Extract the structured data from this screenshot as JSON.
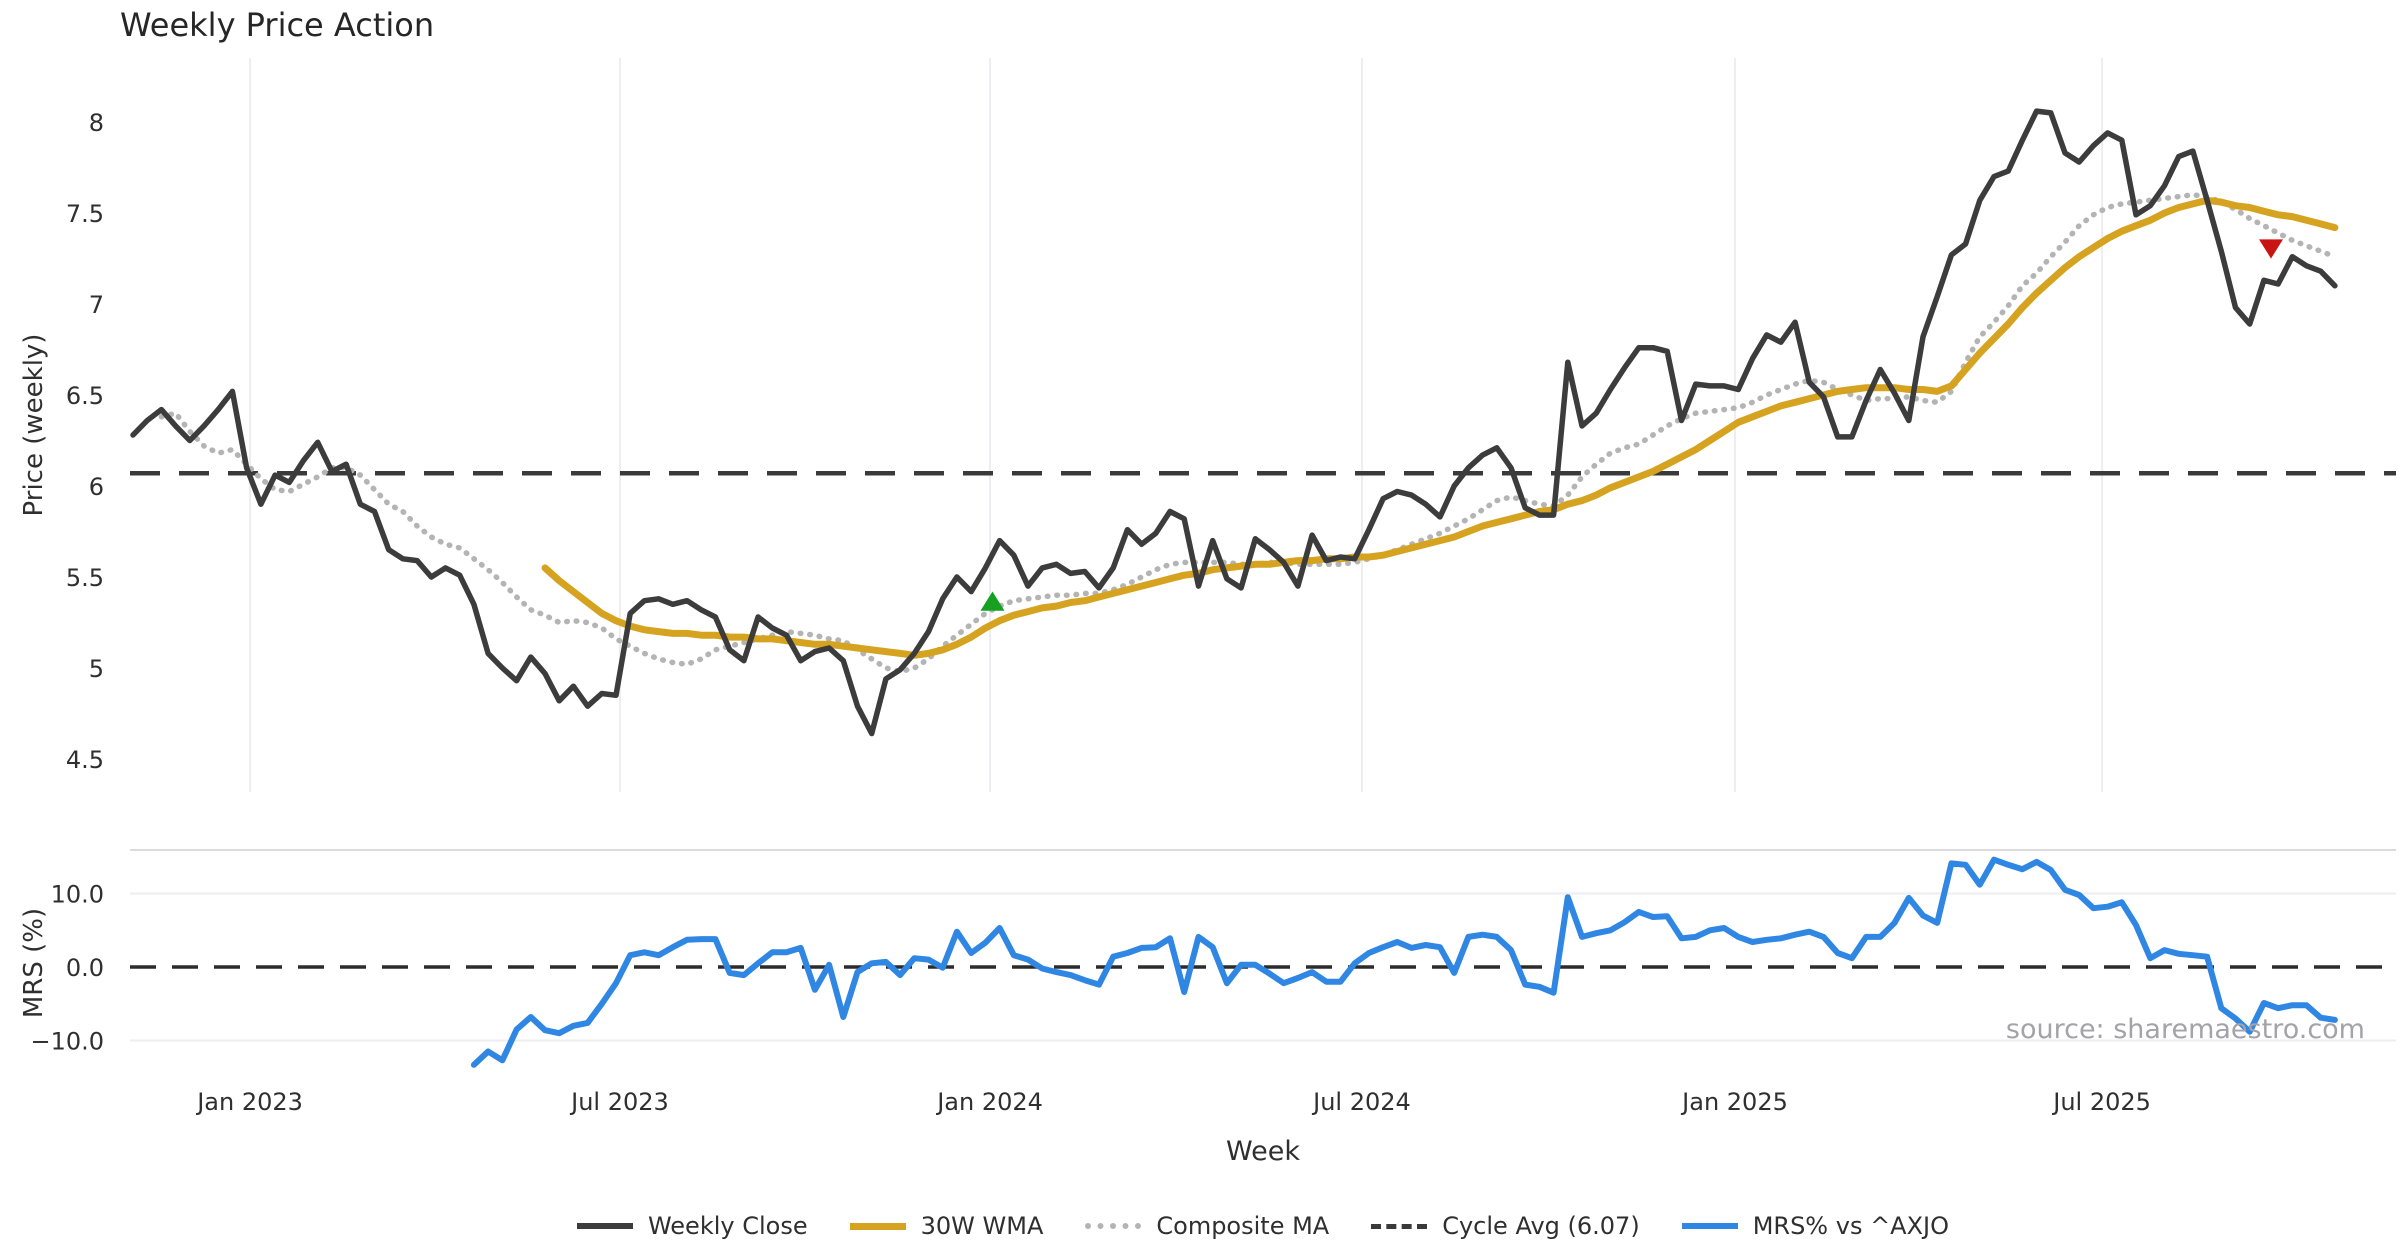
{
  "title": "Weekly Price Action",
  "source_note": "source: sharemaestro.com",
  "colors": {
    "weekly_close": "#3C3C3C",
    "wma": "#D6A320",
    "composite": "#B4B4B4",
    "cycle_avg": "#3A3A3A",
    "mrs": "#2F87E3",
    "buy_marker": "#16A123",
    "sell_marker": "#C91414",
    "grid": "#EDEDF2",
    "panel_border": "#DBDBE2",
    "zero_line": "#2B2B2B"
  },
  "legend": {
    "items": [
      {
        "label": "Weekly Close",
        "style": "solid",
        "weight": 6,
        "color": "#3C3C3C"
      },
      {
        "label": "30W WMA",
        "style": "solid",
        "weight": 7,
        "color": "#D6A320"
      },
      {
        "label": "Composite MA",
        "style": "dotted",
        "weight": 6,
        "color": "#B4B4B4"
      },
      {
        "label": "Cycle Avg (6.07)",
        "style": "dashed",
        "weight": 5,
        "color": "#3A3A3A"
      },
      {
        "label": "MRS% vs ^AXJO",
        "style": "solid",
        "weight": 6,
        "color": "#2F87E3"
      }
    ]
  },
  "chart_data": {
    "type": "line",
    "title": "Weekly Price Action",
    "xlabel": "Week",
    "panels": [
      {
        "id": "price",
        "ylabel": "Price (weekly)",
        "ylim": [
          4.3,
          8.35
        ],
        "yticks": [
          {
            "v": 8,
            "label": "8"
          },
          {
            "v": 7.5,
            "label": "7.5"
          },
          {
            "v": 7,
            "label": "7"
          },
          {
            "v": 6.5,
            "label": "6.5"
          },
          {
            "v": 6,
            "label": "6"
          },
          {
            "v": 5.5,
            "label": "5.5"
          },
          {
            "v": 5,
            "label": "5"
          },
          {
            "v": 4.5,
            "label": "4.5"
          }
        ]
      },
      {
        "id": "mrs",
        "ylabel": "MRS (%)",
        "ylim": [
          -15.9,
          15.9
        ],
        "yticks": [
          {
            "v": 10,
            "label": "10.0"
          },
          {
            "v": 0,
            "label": "0.0"
          },
          {
            "v": -10,
            "label": "−10.0"
          }
        ]
      }
    ],
    "x_axis": {
      "label": "Week",
      "ticks": [
        {
          "label": "Jan 2023",
          "week": 8.24
        },
        {
          "label": "Jul 2023",
          "week": 34.28
        },
        {
          "label": "Jan 2024",
          "week": 60.33
        },
        {
          "label": "Jul 2024",
          "week": 86.51
        },
        {
          "label": "Jan 2025",
          "week": 112.77
        },
        {
          "label": "Jul 2025",
          "week": 138.61
        }
      ]
    },
    "cycle_avg": 6.07,
    "series": [
      {
        "name": "Composite MA",
        "panel": "price",
        "style": "dotted",
        "width": 5.5,
        "color": "#B4B4B4",
        "start_week": 2,
        "values": [
          6.38,
          6.4,
          6.3,
          6.22,
          6.18,
          6.2,
          6.12,
          6.04,
          5.98,
          5.97,
          6.01,
          6.05,
          6.1,
          6.1,
          6.06,
          5.98,
          5.9,
          5.86,
          5.78,
          5.72,
          5.68,
          5.66,
          5.6,
          5.54,
          5.47,
          5.39,
          5.32,
          5.29,
          5.25,
          5.26,
          5.25,
          5.22,
          5.16,
          5.12,
          5.08,
          5.05,
          5.03,
          5.02,
          5.05,
          5.1,
          5.12,
          5.14,
          5.16,
          5.18,
          5.2,
          5.19,
          5.18,
          5.16,
          5.15,
          5.1,
          5.05,
          5.0,
          4.98,
          5.0,
          5.05,
          5.12,
          5.18,
          5.24,
          5.3,
          5.34,
          5.37,
          5.38,
          5.39,
          5.4,
          5.4,
          5.41,
          5.41,
          5.43,
          5.46,
          5.5,
          5.54,
          5.57,
          5.58,
          5.58,
          5.58,
          5.58,
          5.57,
          5.57,
          5.58,
          5.58,
          5.57,
          5.57,
          5.57,
          5.57,
          5.58,
          5.6,
          5.62,
          5.65,
          5.68,
          5.71,
          5.74,
          5.78,
          5.82,
          5.87,
          5.92,
          5.94,
          5.92,
          5.9,
          5.89,
          5.95,
          6.05,
          6.12,
          6.18,
          6.21,
          6.23,
          6.28,
          6.33,
          6.37,
          6.4,
          6.41,
          6.42,
          6.43,
          6.46,
          6.5,
          6.53,
          6.56,
          6.58,
          6.57,
          6.53,
          6.5,
          6.47,
          6.48,
          6.48,
          6.49,
          6.47,
          6.46,
          6.52,
          6.68,
          6.82,
          6.9,
          6.99,
          7.1,
          7.17,
          7.26,
          7.34,
          7.43,
          7.49,
          7.53,
          7.55,
          7.56,
          7.57,
          7.58,
          7.59,
          7.6,
          7.59,
          7.56,
          7.52,
          7.47,
          7.43,
          7.39,
          7.35,
          7.32,
          7.29,
          7.26
        ]
      },
      {
        "name": "30W WMA",
        "panel": "price",
        "style": "solid",
        "width": 7,
        "color": "#D6A320",
        "start_week": 29,
        "values": [
          5.55,
          5.48,
          5.42,
          5.36,
          5.3,
          5.26,
          5.23,
          5.21,
          5.2,
          5.19,
          5.19,
          5.18,
          5.18,
          5.17,
          5.17,
          5.16,
          5.16,
          5.15,
          5.14,
          5.13,
          5.13,
          5.12,
          5.11,
          5.1,
          5.09,
          5.08,
          5.07,
          5.08,
          5.1,
          5.13,
          5.17,
          5.22,
          5.26,
          5.29,
          5.31,
          5.33,
          5.34,
          5.36,
          5.37,
          5.39,
          5.41,
          5.43,
          5.45,
          5.47,
          5.49,
          5.51,
          5.52,
          5.54,
          5.55,
          5.56,
          5.57,
          5.57,
          5.58,
          5.59,
          5.59,
          5.6,
          5.6,
          5.61,
          5.61,
          5.62,
          5.64,
          5.66,
          5.68,
          5.7,
          5.72,
          5.75,
          5.78,
          5.8,
          5.82,
          5.84,
          5.86,
          5.87,
          5.9,
          5.92,
          5.95,
          5.99,
          6.02,
          6.05,
          6.08,
          6.12,
          6.16,
          6.2,
          6.25,
          6.3,
          6.35,
          6.38,
          6.41,
          6.44,
          6.46,
          6.48,
          6.5,
          6.52,
          6.53,
          6.54,
          6.54,
          6.54,
          6.53,
          6.53,
          6.52,
          6.55,
          6.64,
          6.73,
          6.81,
          6.89,
          6.98,
          7.06,
          7.13,
          7.2,
          7.26,
          7.31,
          7.36,
          7.4,
          7.43,
          7.46,
          7.5,
          7.53,
          7.55,
          7.57,
          7.56,
          7.54,
          7.53,
          7.51,
          7.49,
          7.48,
          7.46,
          7.44,
          7.42
        ]
      },
      {
        "name": "Weekly Close",
        "panel": "price",
        "style": "solid",
        "width": 5.5,
        "color": "#3C3C3C",
        "start_week": 0,
        "values": [
          6.28,
          6.36,
          6.42,
          6.33,
          6.25,
          6.33,
          6.42,
          6.52,
          6.1,
          5.9,
          6.06,
          6.02,
          6.14,
          6.24,
          6.08,
          6.12,
          5.9,
          5.86,
          5.65,
          5.6,
          5.59,
          5.5,
          5.55,
          5.51,
          5.35,
          5.08,
          5.0,
          4.93,
          5.06,
          4.97,
          4.82,
          4.9,
          4.79,
          4.86,
          4.85,
          5.3,
          5.37,
          5.38,
          5.35,
          5.37,
          5.32,
          5.28,
          5.1,
          5.04,
          5.28,
          5.22,
          5.18,
          5.04,
          5.09,
          5.11,
          5.04,
          4.79,
          4.64,
          4.94,
          4.99,
          5.08,
          5.2,
          5.38,
          5.5,
          5.42,
          5.55,
          5.7,
          5.62,
          5.45,
          5.55,
          5.57,
          5.52,
          5.53,
          5.44,
          5.55,
          5.76,
          5.68,
          5.74,
          5.86,
          5.82,
          5.45,
          5.7,
          5.49,
          5.44,
          5.71,
          5.65,
          5.58,
          5.45,
          5.73,
          5.59,
          5.61,
          5.6,
          5.76,
          5.93,
          5.97,
          5.95,
          5.9,
          5.83,
          6.0,
          6.1,
          6.17,
          6.21,
          6.1,
          5.88,
          5.84,
          5.84,
          6.68,
          6.33,
          6.4,
          6.53,
          6.65,
          6.76,
          6.76,
          6.74,
          6.36,
          6.56,
          6.55,
          6.55,
          6.53,
          6.7,
          6.83,
          6.79,
          6.9,
          6.57,
          6.49,
          6.27,
          6.27,
          6.47,
          6.64,
          6.51,
          6.36,
          6.82,
          7.04,
          7.27,
          7.33,
          7.57,
          7.7,
          7.73,
          7.9,
          8.06,
          8.05,
          7.83,
          7.78,
          7.87,
          7.94,
          7.9,
          7.49,
          7.54,
          7.65,
          7.81,
          7.84,
          7.57,
          7.29,
          6.98,
          6.89,
          7.13,
          7.11,
          7.26,
          7.21,
          7.18,
          7.1
        ]
      },
      {
        "name": "MRS% vs ^AXJO",
        "panel": "mrs",
        "style": "solid",
        "width": 6,
        "color": "#2F87E3",
        "start_week": 24,
        "values": [
          -13.3,
          -11.5,
          -12.7,
          -8.5,
          -6.8,
          -8.6,
          -9.0,
          -8.0,
          -7.6,
          -5.0,
          -2.2,
          1.6,
          2.0,
          1.6,
          2.7,
          3.7,
          3.8,
          3.8,
          -0.8,
          -1.1,
          0.5,
          2.0,
          2.0,
          2.6,
          -3.1,
          0.3,
          -6.8,
          -0.7,
          0.5,
          0.7,
          -1.1,
          1.2,
          1.0,
          -0.1,
          4.8,
          1.9,
          3.3,
          5.3,
          1.6,
          1.0,
          -0.2,
          -0.7,
          -1.1,
          -1.8,
          -2.4,
          1.4,
          1.9,
          2.6,
          2.7,
          3.9,
          -3.4,
          4.1,
          2.7,
          -2.2,
          0.3,
          0.3,
          -0.9,
          -2.2,
          -1.5,
          -0.7,
          -2.0,
          -2.0,
          0.5,
          1.9,
          2.7,
          3.4,
          2.6,
          3.0,
          2.7,
          -0.8,
          4.1,
          4.4,
          4.1,
          2.3,
          -2.4,
          -2.7,
          -3.5,
          9.5,
          4.1,
          4.6,
          5.0,
          6.1,
          7.5,
          6.8,
          6.9,
          3.9,
          4.1,
          5.0,
          5.3,
          4.1,
          3.4,
          3.7,
          3.9,
          4.4,
          4.8,
          4.1,
          1.9,
          1.2,
          4.1,
          4.1,
          6.0,
          9.4,
          7.0,
          6.0,
          14.1,
          13.9,
          11.2,
          14.6,
          13.9,
          13.3,
          14.3,
          13.2,
          10.5,
          9.8,
          8.0,
          8.2,
          8.8,
          5.7,
          1.2,
          2.3,
          1.8,
          1.6,
          1.4,
          -5.6,
          -7.0,
          -8.8,
          -4.9,
          -5.6,
          -5.2,
          -5.2,
          -6.9,
          -7.2
        ]
      }
    ],
    "markers": [
      {
        "type": "buy-signal",
        "shape": "triangle-up",
        "week": 60.5,
        "price": 5.36,
        "color": "#16A123"
      },
      {
        "type": "sell-signal",
        "shape": "triangle-down",
        "week": 150.5,
        "price": 7.31,
        "color": "#C91414"
      }
    ]
  }
}
